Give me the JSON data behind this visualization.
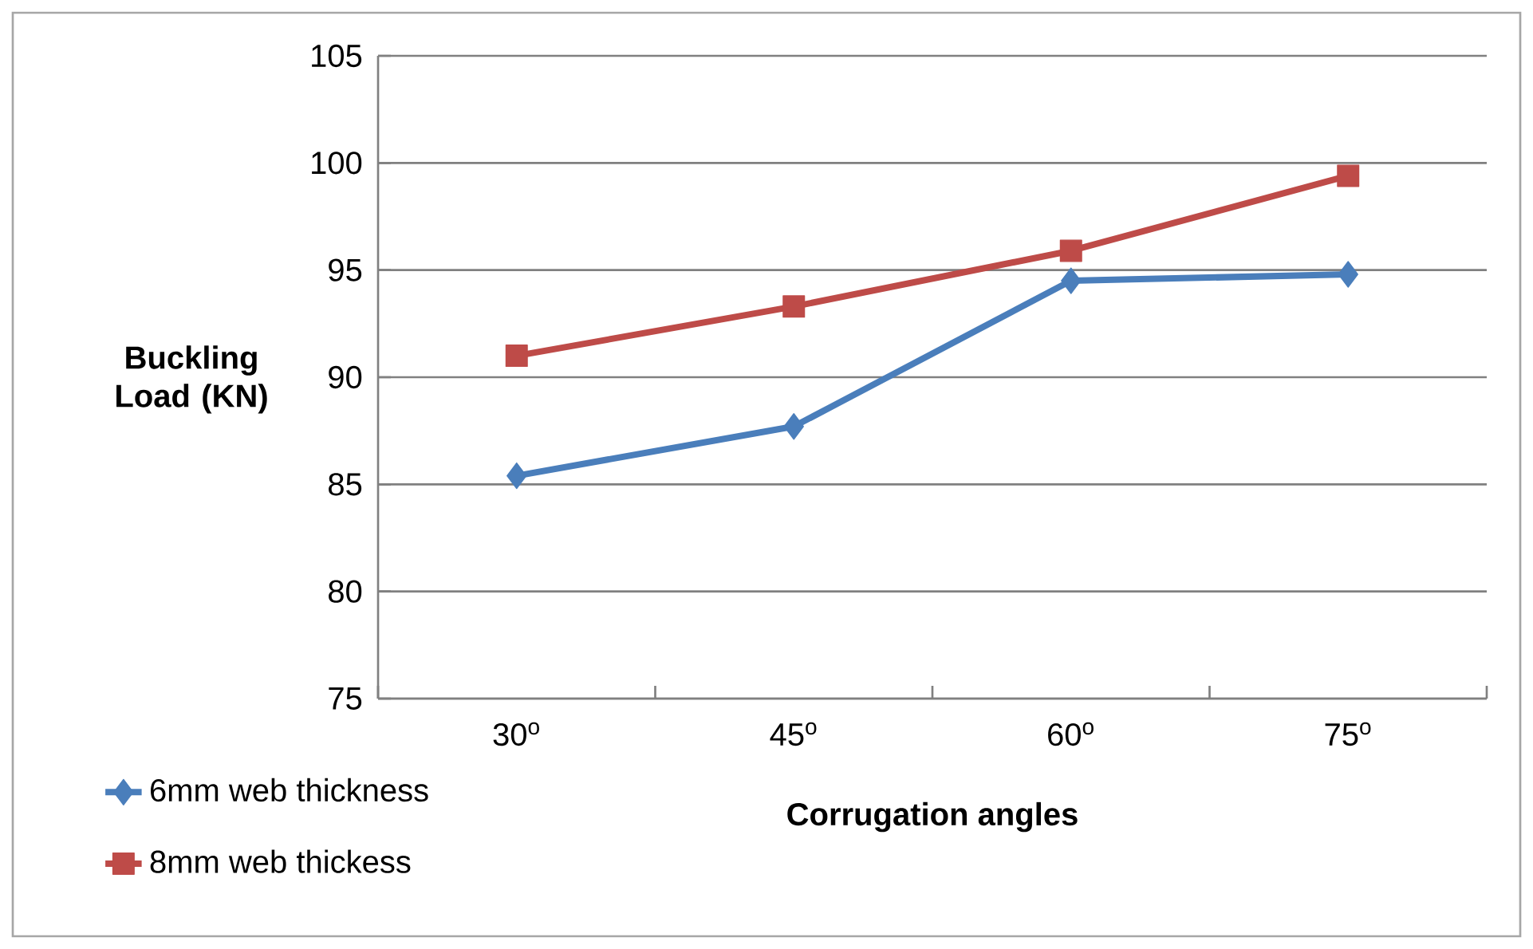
{
  "chart_data": {
    "type": "line",
    "categories": [
      "30$^{o}$",
      "45$^{o}$",
      "60$^{o}$",
      "75$^{o}$"
    ],
    "series": [
      {
        "name": "6mm web thickness",
        "color": "#4a7ebb",
        "marker": "diamond",
        "values": [
          85.4,
          87.7,
          94.5,
          94.8
        ]
      },
      {
        "name": "8mm web thickess",
        "color": "#be4b48",
        "marker": "square",
        "values": [
          91.0,
          93.3,
          95.9,
          99.4
        ]
      }
    ],
    "xlabel": "Corrugation angles",
    "ylabel": "Buckling Load (KN)",
    "ylim": [
      75,
      105
    ],
    "yticks": [
      75,
      80,
      85,
      90,
      95,
      100,
      105
    ],
    "grid": "y",
    "legend": "bottom left",
    "line_style": "solid"
  }
}
